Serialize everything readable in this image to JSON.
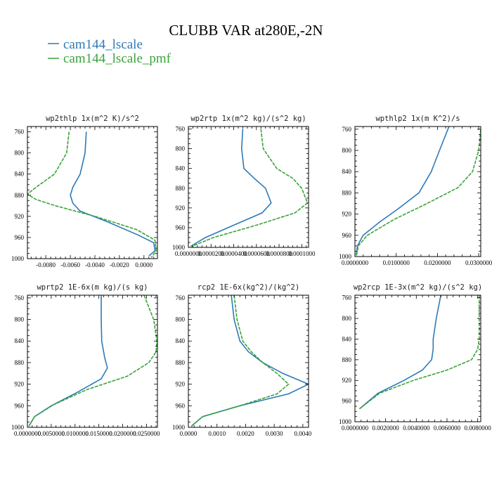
{
  "title": "CLUBB VAR at280E,-2N",
  "legend": [
    {
      "label": "cam144_lscale",
      "color": "#2e7ab8"
    },
    {
      "label": "cam144_lscale_pmf",
      "color": "#3aa33a"
    }
  ],
  "chart_data": [
    {
      "type": "line",
      "title": "wp2thlp   1x(m^2 K)/s^2",
      "xlim": [
        -0.0095,
        0.0011
      ],
      "xticks": [
        -0.008,
        -0.006,
        -0.004,
        -0.002,
        0.0
      ],
      "xtick_labels": [
        "-0.0080",
        "-0.0060",
        "-0.0040",
        "-0.0020",
        "0.0000"
      ],
      "ylim": [
        750,
        1000
      ],
      "yticks": [
        760,
        800,
        840,
        880,
        920,
        960,
        1000
      ],
      "series": [
        {
          "name": "cam144_lscale",
          "color": "#2e7ab8",
          "x": [
            -0.0047,
            -0.0048,
            -0.0052,
            -0.0058,
            -0.006,
            -0.0058,
            -0.0052,
            -0.003,
            -0.0005,
            0.0008,
            0.0009,
            0.0004
          ],
          "y": [
            760,
            800,
            840,
            865,
            880,
            895,
            910,
            930,
            955,
            970,
            985,
            995
          ]
        },
        {
          "name": "cam144_lscale_pmf",
          "color": "#3aa33a",
          "x": [
            -0.0061,
            -0.0063,
            -0.0073,
            -0.0088,
            -0.0095,
            -0.0088,
            -0.0072,
            -0.004,
            -0.0006,
            0.0009,
            0.001,
            0.0006
          ],
          "y": [
            760,
            800,
            840,
            865,
            878,
            888,
            900,
            920,
            945,
            965,
            985,
            998
          ]
        }
      ]
    },
    {
      "type": "line",
      "title": "wp2rtp   1x(m^2 kg)/(s^2 kg)",
      "xlim": [
        0.0,
        0.000106
      ],
      "xticks": [
        0.0,
        2e-05,
        4e-05,
        6e-05,
        8e-05,
        0.0001
      ],
      "xtick_labels": [
        "0.0000000",
        "0.0000200",
        "0.0000400",
        "0.0000600",
        "0.0000800",
        "0.0001000"
      ],
      "ylim": [
        755,
        1000
      ],
      "yticks": [
        760,
        800,
        840,
        880,
        920,
        960,
        1000
      ],
      "series": [
        {
          "name": "cam144_lscale",
          "color": "#2e7ab8",
          "x": [
            4.8e-05,
            4.7e-05,
            4.9e-05,
            5.8e-05,
            6.8e-05,
            7.3e-05,
            6.5e-05,
            4e-05,
            1.5e-05,
            2e-06
          ],
          "y": [
            760,
            800,
            840,
            860,
            880,
            910,
            930,
            955,
            980,
            998
          ]
        },
        {
          "name": "cam144_lscale_pmf",
          "color": "#3aa33a",
          "x": [
            6.4e-05,
            6.6e-05,
            7.8e-05,
            9.2e-05,
            0.0001,
            0.000105,
            9.4e-05,
            6e-05,
            2.2e-05,
            3e-06
          ],
          "y": [
            760,
            800,
            840,
            860,
            880,
            910,
            930,
            955,
            980,
            998
          ]
        }
      ]
    },
    {
      "type": "line",
      "title": "wpthlp2   1x(m K^2)/s",
      "xlim": [
        0.0,
        0.0305
      ],
      "xticks": [
        0.0,
        0.01,
        0.02,
        0.03
      ],
      "xtick_labels": [
        "0.0000000",
        "0.0100000",
        "0.0200000",
        "0.0300000"
      ],
      "ylim": [
        755,
        1000
      ],
      "yticks": [
        760,
        800,
        840,
        880,
        920,
        960,
        1000
      ],
      "series": [
        {
          "name": "cam144_lscale",
          "color": "#2e7ab8",
          "x": [
            0.0228,
            0.0205,
            0.0185,
            0.0155,
            0.0105,
            0.006,
            0.002,
            0.0006,
            0.0003
          ],
          "y": [
            755,
            800,
            840,
            880,
            910,
            935,
            960,
            980,
            998
          ]
        },
        {
          "name": "cam144_lscale_pmf",
          "color": "#3aa33a",
          "x": [
            0.0305,
            0.03,
            0.0285,
            0.025,
            0.0175,
            0.0095,
            0.003,
            0.0008,
            0.0004
          ],
          "y": [
            760,
            800,
            840,
            870,
            900,
            930,
            960,
            980,
            998
          ]
        }
      ]
    },
    {
      "type": "line",
      "title": "wprtp2   1E-6x(m kg)/(s kg)",
      "xlim": [
        0.0,
        0.0273
      ],
      "xticks": [
        0.0,
        0.005,
        0.01,
        0.015,
        0.02,
        0.025
      ],
      "xtick_labels": [
        "0.0000000",
        "0.0050000",
        "0.0100000",
        "0.0150000",
        "0.0200000",
        "0.0250000"
      ],
      "ylim": [
        755,
        1000
      ],
      "yticks": [
        760,
        800,
        840,
        880,
        920,
        960,
        1000
      ],
      "series": [
        {
          "name": "cam144_lscale",
          "color": "#2e7ab8",
          "x": [
            0.0155,
            0.0155,
            0.0156,
            0.0162,
            0.0168,
            0.0155,
            0.0105,
            0.005,
            0.0015,
            0.0003
          ],
          "y": [
            755,
            800,
            840,
            870,
            890,
            910,
            935,
            960,
            980,
            998
          ]
        },
        {
          "name": "cam144_lscale_pmf",
          "color": "#3aa33a",
          "x": [
            0.0245,
            0.0265,
            0.0272,
            0.027,
            0.0255,
            0.021,
            0.0125,
            0.0055,
            0.0015,
            0.0003
          ],
          "y": [
            755,
            800,
            840,
            860,
            880,
            905,
            930,
            958,
            980,
            998
          ]
        }
      ]
    },
    {
      "type": "line",
      "title": "rcp2   1E-6x(kg^2)/(kg^2)",
      "xlim": [
        0.0,
        0.0042
      ],
      "xticks": [
        0.0,
        0.001,
        0.002,
        0.003,
        0.004
      ],
      "xtick_labels": [
        "0.0000",
        "0.0010",
        "0.0020",
        "0.0030",
        "0.0040"
      ],
      "ylim": [
        755,
        1000
      ],
      "yticks": [
        760,
        800,
        840,
        880,
        920,
        960,
        1000
      ],
      "series": [
        {
          "name": "cam144_lscale",
          "color": "#2e7ab8",
          "x": [
            0.0015,
            0.0016,
            0.0018,
            0.0021,
            0.0026,
            0.0033,
            0.0042,
            0.0035,
            0.0018,
            0.0005,
            0.0001
          ],
          "y": [
            755,
            800,
            840,
            860,
            880,
            900,
            920,
            938,
            960,
            980,
            998
          ]
        },
        {
          "name": "cam144_lscale_pmf",
          "color": "#3aa33a",
          "x": [
            0.0016,
            0.0017,
            0.0019,
            0.0022,
            0.0026,
            0.0031,
            0.0035,
            0.0031,
            0.0018,
            0.0005,
            0.0001
          ],
          "y": [
            755,
            800,
            840,
            860,
            880,
            900,
            920,
            938,
            960,
            980,
            998
          ]
        }
      ]
    },
    {
      "type": "line",
      "title": "wp2rcp   1E-3x(m^2 kg)/(s^2 kg)",
      "xlim": [
        0.0,
        0.0082
      ],
      "xticks": [
        0.0,
        0.002,
        0.004,
        0.006,
        0.008
      ],
      "xtick_labels": [
        "0.0000000",
        "0.0020000",
        "0.0040000",
        "0.0060000",
        "0.0080000"
      ],
      "ylim": [
        755,
        1000
      ],
      "yticks": [
        760,
        800,
        840,
        880,
        920,
        960,
        1000
      ],
      "series": [
        {
          "name": "cam144_lscale",
          "color": "#2e7ab8",
          "x": [
            0.0056,
            0.0053,
            0.0051,
            0.0051,
            0.005,
            0.0044,
            0.0032,
            0.0015,
            0.0003
          ],
          "y": [
            755,
            800,
            840,
            860,
            880,
            900,
            920,
            945,
            975
          ]
        },
        {
          "name": "cam144_lscale_pmf",
          "color": "#3aa33a",
          "x": [
            0.0081,
            0.0081,
            0.0081,
            0.008,
            0.0076,
            0.006,
            0.0038,
            0.0016,
            0.0003
          ],
          "y": [
            755,
            800,
            840,
            860,
            880,
            900,
            920,
            945,
            975
          ]
        }
      ]
    }
  ]
}
